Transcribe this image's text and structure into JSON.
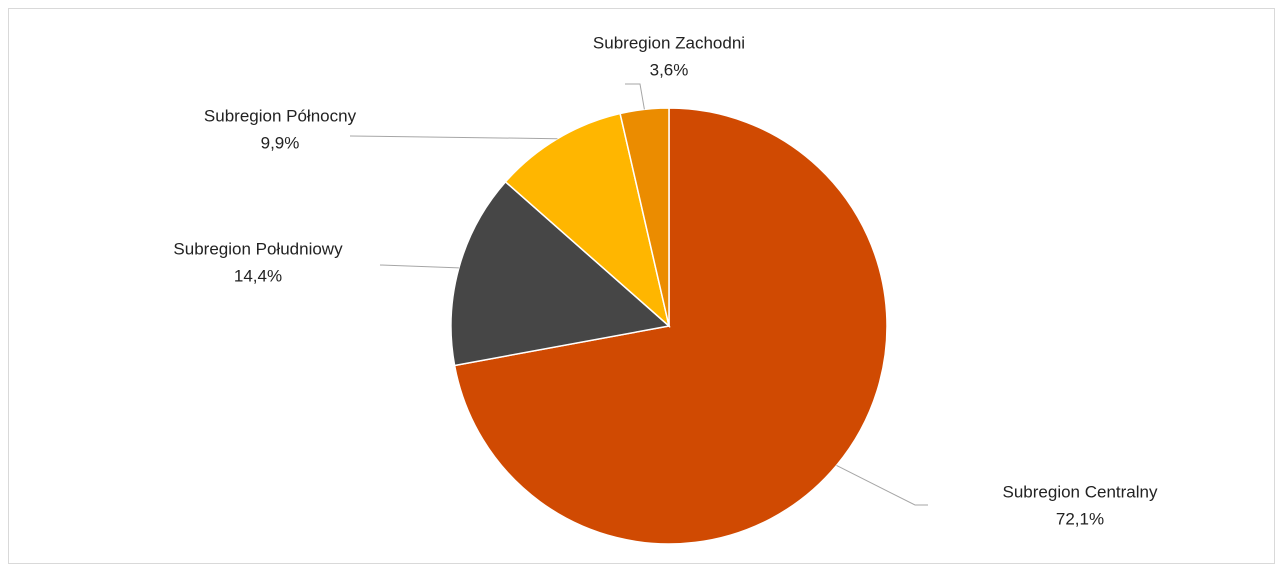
{
  "chart_data": {
    "type": "pie",
    "categories": [
      "Subregion Centralny",
      "Subregion Południowy",
      "Subregion Północny",
      "Subregion Zachodni"
    ],
    "values": [
      72.1,
      14.4,
      9.9,
      3.6
    ],
    "value_labels": [
      "72,1%",
      "14,4%",
      "9,9%",
      "3,6%"
    ],
    "colors": [
      "#d04a02",
      "#464646",
      "#ffb600",
      "#eb8c00"
    ]
  }
}
